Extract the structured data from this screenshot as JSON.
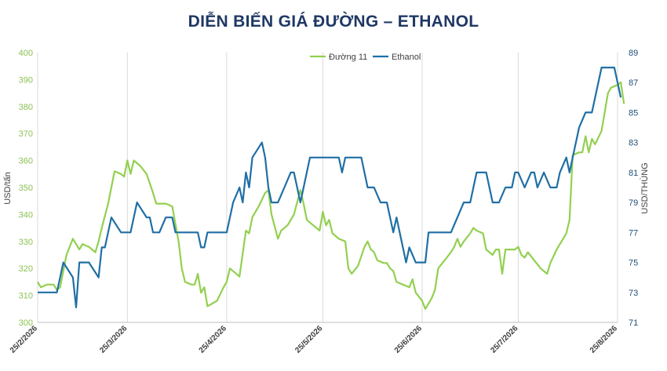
{
  "title": "DIỄN BIẾN GIÁ ĐƯỜNG – ETHANOL",
  "chart_data": {
    "type": "line",
    "title": "DIỄN BIẾN GIÁ ĐƯỜNG – ETHANOL",
    "xlabel": "",
    "ylabel_left": "USD/tấn",
    "ylabel_right": "USD/THÙNG",
    "ylim_left": [
      300,
      400
    ],
    "ylim_right": [
      71,
      89
    ],
    "yticks_left": [
      "300",
      "310",
      "320",
      "330",
      "340",
      "350",
      "360",
      "370",
      "380",
      "390",
      "400"
    ],
    "yticks_right": [
      "71",
      "73",
      "75",
      "77",
      "79",
      "81",
      "83",
      "85",
      "87",
      "89"
    ],
    "xticks": [
      "25/2/2026",
      "25/3/2026",
      "25/4/2026",
      "25/5/2026",
      "25/6/2026",
      "25/7/2026",
      "25/8/2026"
    ],
    "grid": "vertical",
    "legend_position": "top-center",
    "colors": {
      "sugar": "#92d050",
      "ethanol": "#1f6fa5",
      "left_axis": "#8cc152",
      "right_axis": "#1f4e79"
    },
    "series": [
      {
        "name": "Đường 11",
        "axis": "left",
        "points": [
          [
            "25/2/2026",
            315
          ],
          [
            "26/2/2026",
            313
          ],
          [
            "28/2/2026",
            314
          ],
          [
            "2/3/2026",
            314
          ],
          [
            "3/3/2026",
            312
          ],
          [
            "4/3/2026",
            313
          ],
          [
            "6/3/2026",
            325
          ],
          [
            "8/3/2026",
            331
          ],
          [
            "9/3/2026",
            329
          ],
          [
            "10/3/2026",
            327
          ],
          [
            "11/3/2026",
            329
          ],
          [
            "13/3/2026",
            328
          ],
          [
            "15/3/2026",
            326
          ],
          [
            "16/3/2026",
            330
          ],
          [
            "17/3/2026",
            335
          ],
          [
            "19/3/2026",
            344
          ],
          [
            "21/3/2026",
            356
          ],
          [
            "23/3/2026",
            355
          ],
          [
            "24/3/2026",
            354
          ],
          [
            "25/3/2026",
            360
          ],
          [
            "26/3/2026",
            355
          ],
          [
            "27/3/2026",
            360
          ],
          [
            "29/3/2026",
            358
          ],
          [
            "31/3/2026",
            355
          ],
          [
            "2/4/2026",
            348
          ],
          [
            "3/4/2026",
            344
          ],
          [
            "6/4/2026",
            344
          ],
          [
            "8/4/2026",
            343
          ],
          [
            "10/4/2026",
            330
          ],
          [
            "11/4/2026",
            320
          ],
          [
            "12/4/2026",
            315
          ],
          [
            "14/4/2026",
            314
          ],
          [
            "15/4/2026",
            314
          ],
          [
            "16/4/2026",
            318
          ],
          [
            "17/4/2026",
            311
          ],
          [
            "18/4/2026",
            313
          ],
          [
            "19/4/2026",
            306
          ],
          [
            "22/4/2026",
            308
          ],
          [
            "24/4/2026",
            313
          ],
          [
            "25/4/2026",
            315
          ],
          [
            "26/4/2026",
            320
          ],
          [
            "28/4/2026",
            318
          ],
          [
            "29/4/2026",
            317
          ],
          [
            "1/5/2026",
            334
          ],
          [
            "2/5/2026",
            333
          ],
          [
            "3/5/2026",
            339
          ],
          [
            "5/5/2026",
            343
          ],
          [
            "7/5/2026",
            348
          ],
          [
            "8/5/2026",
            349
          ],
          [
            "9/5/2026",
            340
          ],
          [
            "11/5/2026",
            331
          ],
          [
            "12/5/2026",
            334
          ],
          [
            "14/5/2026",
            336
          ],
          [
            "16/5/2026",
            340
          ],
          [
            "18/5/2026",
            349
          ],
          [
            "19/5/2026",
            344
          ],
          [
            "20/5/2026",
            338
          ],
          [
            "22/5/2026",
            336
          ],
          [
            "24/5/2026",
            334
          ],
          [
            "25/5/2026",
            341
          ],
          [
            "26/5/2026",
            336
          ],
          [
            "27/5/2026",
            338
          ],
          [
            "28/5/2026",
            333
          ],
          [
            "30/5/2026",
            331
          ],
          [
            "1/6/2026",
            330
          ],
          [
            "2/6/2026",
            320
          ],
          [
            "3/6/2026",
            318
          ],
          [
            "5/6/2026",
            321
          ],
          [
            "7/6/2026",
            328
          ],
          [
            "8/6/2026",
            330
          ],
          [
            "9/6/2026",
            327
          ],
          [
            "10/6/2026",
            326
          ],
          [
            "11/6/2026",
            323
          ],
          [
            "13/6/2026",
            322
          ],
          [
            "14/6/2026",
            322
          ],
          [
            "15/6/2026",
            320
          ],
          [
            "16/6/2026",
            319
          ],
          [
            "17/6/2026",
            315
          ],
          [
            "19/6/2026",
            314
          ],
          [
            "21/6/2026",
            313
          ],
          [
            "22/6/2026",
            316
          ],
          [
            "23/6/2026",
            311
          ],
          [
            "25/6/2026",
            308
          ],
          [
            "26/6/2026",
            305
          ],
          [
            "27/6/2026",
            307
          ],
          [
            "28/6/2026",
            309
          ],
          [
            "29/6/2026",
            312
          ],
          [
            "30/6/2026",
            320
          ],
          [
            "2/7/2026",
            323
          ],
          [
            "4/7/2026",
            326
          ],
          [
            "5/7/2026",
            328
          ],
          [
            "6/7/2026",
            331
          ],
          [
            "7/7/2026",
            328
          ],
          [
            "8/7/2026",
            330
          ],
          [
            "10/7/2026",
            333
          ],
          [
            "11/7/2026",
            335
          ],
          [
            "12/7/2026",
            334
          ],
          [
            "14/7/2026",
            333
          ],
          [
            "15/7/2026",
            327
          ],
          [
            "17/7/2026",
            325
          ],
          [
            "18/7/2026",
            327
          ],
          [
            "19/7/2026",
            327
          ],
          [
            "20/7/2026",
            318
          ],
          [
            "21/7/2026",
            327
          ],
          [
            "23/7/2026",
            327
          ],
          [
            "24/7/2026",
            327
          ],
          [
            "25/7/2026",
            328
          ],
          [
            "26/7/2026",
            325
          ],
          [
            "27/7/2026",
            324
          ],
          [
            "28/7/2026",
            326
          ],
          [
            "30/7/2026",
            323
          ],
          [
            "1/8/2026",
            320
          ],
          [
            "3/8/2026",
            318
          ],
          [
            "4/8/2026",
            322
          ],
          [
            "6/8/2026",
            327
          ],
          [
            "8/8/2026",
            331
          ],
          [
            "9/8/2026",
            333
          ],
          [
            "10/8/2026",
            338
          ],
          [
            "11/8/2026",
            362
          ],
          [
            "13/8/2026",
            363
          ],
          [
            "14/8/2026",
            363
          ],
          [
            "15/8/2026",
            369
          ],
          [
            "16/8/2026",
            363
          ],
          [
            "17/8/2026",
            368
          ],
          [
            "18/8/2026",
            366
          ],
          [
            "20/8/2026",
            371
          ],
          [
            "22/8/2026",
            385
          ],
          [
            "23/8/2026",
            387
          ],
          [
            "25/8/2026",
            388
          ],
          [
            "26/8/2026",
            389
          ],
          [
            "27/8/2026",
            381
          ]
        ]
      },
      {
        "name": "Ethanol",
        "axis": "right",
        "points": [
          [
            "25/2/2026",
            73
          ],
          [
            "2/3/2026",
            73
          ],
          [
            "3/3/2026",
            73
          ],
          [
            "5/3/2026",
            75
          ],
          [
            "8/3/2026",
            74
          ],
          [
            "9/3/2026",
            72
          ],
          [
            "10/3/2026",
            75
          ],
          [
            "11/3/2026",
            75
          ],
          [
            "13/3/2026",
            75
          ],
          [
            "16/3/2026",
            74
          ],
          [
            "17/3/2026",
            76
          ],
          [
            "18/3/2026",
            76
          ],
          [
            "20/3/2026",
            78
          ],
          [
            "23/3/2026",
            77
          ],
          [
            "25/3/2026",
            77
          ],
          [
            "26/3/2026",
            77
          ],
          [
            "28/3/2026",
            79
          ],
          [
            "31/3/2026",
            78
          ],
          [
            "1/4/2026",
            78
          ],
          [
            "2/4/2026",
            77
          ],
          [
            "4/4/2026",
            77
          ],
          [
            "6/4/2026",
            78
          ],
          [
            "8/4/2026",
            78
          ],
          [
            "9/4/2026",
            77
          ],
          [
            "15/4/2026",
            77
          ],
          [
            "16/4/2026",
            77
          ],
          [
            "17/4/2026",
            76
          ],
          [
            "18/4/2026",
            76
          ],
          [
            "19/4/2026",
            77
          ],
          [
            "24/4/2026",
            77
          ],
          [
            "25/4/2026",
            77
          ],
          [
            "27/4/2026",
            79
          ],
          [
            "29/4/2026",
            80
          ],
          [
            "30/4/2026",
            79
          ],
          [
            "1/5/2026",
            81
          ],
          [
            "2/5/2026",
            80
          ],
          [
            "3/5/2026",
            82
          ],
          [
            "6/5/2026",
            83
          ],
          [
            "7/5/2026",
            82
          ],
          [
            "8/5/2026",
            80
          ],
          [
            "9/5/2026",
            79
          ],
          [
            "11/5/2026",
            79
          ],
          [
            "13/5/2026",
            80
          ],
          [
            "15/5/2026",
            81
          ],
          [
            "16/5/2026",
            81
          ],
          [
            "18/5/2026",
            79
          ],
          [
            "19/5/2026",
            80
          ],
          [
            "21/5/2026",
            82
          ],
          [
            "28/5/2026",
            82
          ],
          [
            "30/5/2026",
            82
          ],
          [
            "31/5/2026",
            81
          ],
          [
            "1/6/2026",
            82
          ],
          [
            "6/6/2026",
            82
          ],
          [
            "8/6/2026",
            80
          ],
          [
            "10/6/2026",
            80
          ],
          [
            "12/6/2026",
            79
          ],
          [
            "14/6/2026",
            79
          ],
          [
            "16/6/2026",
            77
          ],
          [
            "17/6/2026",
            78
          ],
          [
            "19/6/2026",
            76
          ],
          [
            "20/6/2026",
            75
          ],
          [
            "21/6/2026",
            76
          ],
          [
            "23/6/2026",
            75
          ],
          [
            "25/6/2026",
            75
          ],
          [
            "26/6/2026",
            75
          ],
          [
            "27/6/2026",
            77
          ],
          [
            "29/6/2026",
            77
          ],
          [
            "4/7/2026",
            77
          ],
          [
            "6/7/2026",
            78
          ],
          [
            "8/7/2026",
            79
          ],
          [
            "10/7/2026",
            79
          ],
          [
            "11/7/2026",
            80
          ],
          [
            "12/7/2026",
            81
          ],
          [
            "15/7/2026",
            81
          ],
          [
            "16/7/2026",
            80
          ],
          [
            "17/7/2026",
            79
          ],
          [
            "19/7/2026",
            79
          ],
          [
            "21/7/2026",
            80
          ],
          [
            "23/7/2026",
            80
          ],
          [
            "24/7/2026",
            81
          ],
          [
            "25/7/2026",
            81
          ],
          [
            "27/7/2026",
            80
          ],
          [
            "29/7/2026",
            81
          ],
          [
            "30/7/2026",
            81
          ],
          [
            "31/7/2026",
            80
          ],
          [
            "2/8/2026",
            81
          ],
          [
            "4/8/2026",
            80
          ],
          [
            "6/8/2026",
            80
          ],
          [
            "7/8/2026",
            81
          ],
          [
            "9/8/2026",
            82
          ],
          [
            "10/8/2026",
            81
          ],
          [
            "11/8/2026",
            82
          ],
          [
            "13/8/2026",
            84
          ],
          [
            "15/8/2026",
            85
          ],
          [
            "17/8/2026",
            85
          ],
          [
            "19/8/2026",
            87
          ],
          [
            "20/8/2026",
            88
          ],
          [
            "22/8/2026",
            88
          ],
          [
            "23/8/2026",
            88
          ],
          [
            "24/8/2026",
            88
          ],
          [
            "25/8/2026",
            87
          ],
          [
            "26/8/2026",
            86
          ]
        ]
      }
    ]
  }
}
